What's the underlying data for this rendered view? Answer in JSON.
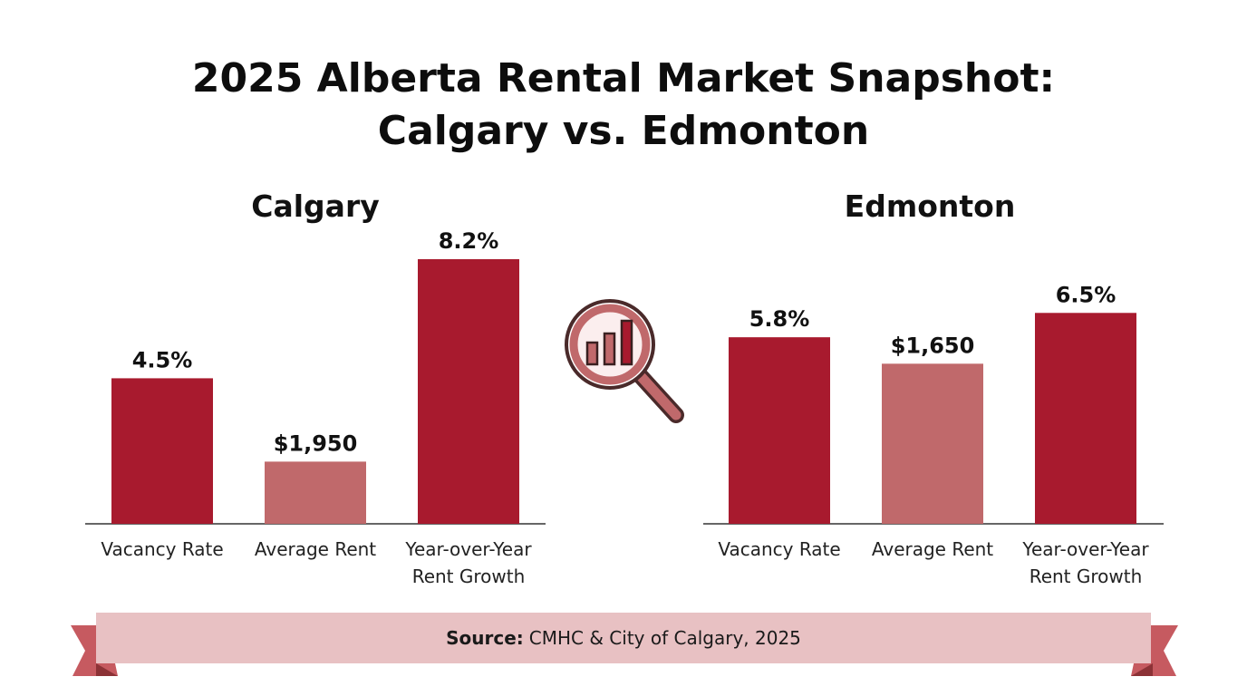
{
  "title": {
    "line1": "2025 Alberta Rental Market Snapshot:",
    "line2": "Calgary vs. Edmonton"
  },
  "colors": {
    "bar_primary": "#a81a2e",
    "bar_secondary": "#c0696b",
    "banner": "#e8c1c3",
    "banner_tail": "#c65a60"
  },
  "chart_data": [
    {
      "type": "bar",
      "title": "Calgary",
      "categories": [
        "Vacancy Rate",
        "Average Rent",
        "Year-over-Year Rent Growth"
      ],
      "category_lines": [
        [
          "Vacancy Rate"
        ],
        [
          "Average Rent"
        ],
        [
          "Year-over-Year",
          "Rent Growth"
        ]
      ],
      "data_labels": [
        "4.5%",
        "$1,950",
        "8.2%"
      ],
      "values": [
        4.5,
        1950,
        8.2
      ],
      "bar_fill_fraction": [
        0.55,
        0.235,
        1.0
      ],
      "bar_colors": [
        "#a81a2e",
        "#c0696b",
        "#a81a2e"
      ],
      "grid": false,
      "legend": "none"
    },
    {
      "type": "bar",
      "title": "Edmonton",
      "categories": [
        "Vacancy Rate",
        "Average Rent",
        "Year-over-Year Rent Growth"
      ],
      "category_lines": [
        [
          "Vacancy Rate"
        ],
        [
          "Average Rent"
        ],
        [
          "Year-over-Year",
          "Rent Growth"
        ]
      ],
      "data_labels": [
        "5.8%",
        "$1,650",
        "6.5%"
      ],
      "values": [
        5.8,
        1650,
        6.5
      ],
      "bar_fill_fraction": [
        0.705,
        0.605,
        0.797
      ],
      "bar_colors": [
        "#a81a2e",
        "#c0696b",
        "#a81a2e"
      ],
      "grid": false,
      "legend": "none"
    }
  ],
  "source": {
    "label": "Source:",
    "text": "CMHC & City of Calgary, 2025"
  },
  "center_icon": "magnifying-glass-chart-icon"
}
